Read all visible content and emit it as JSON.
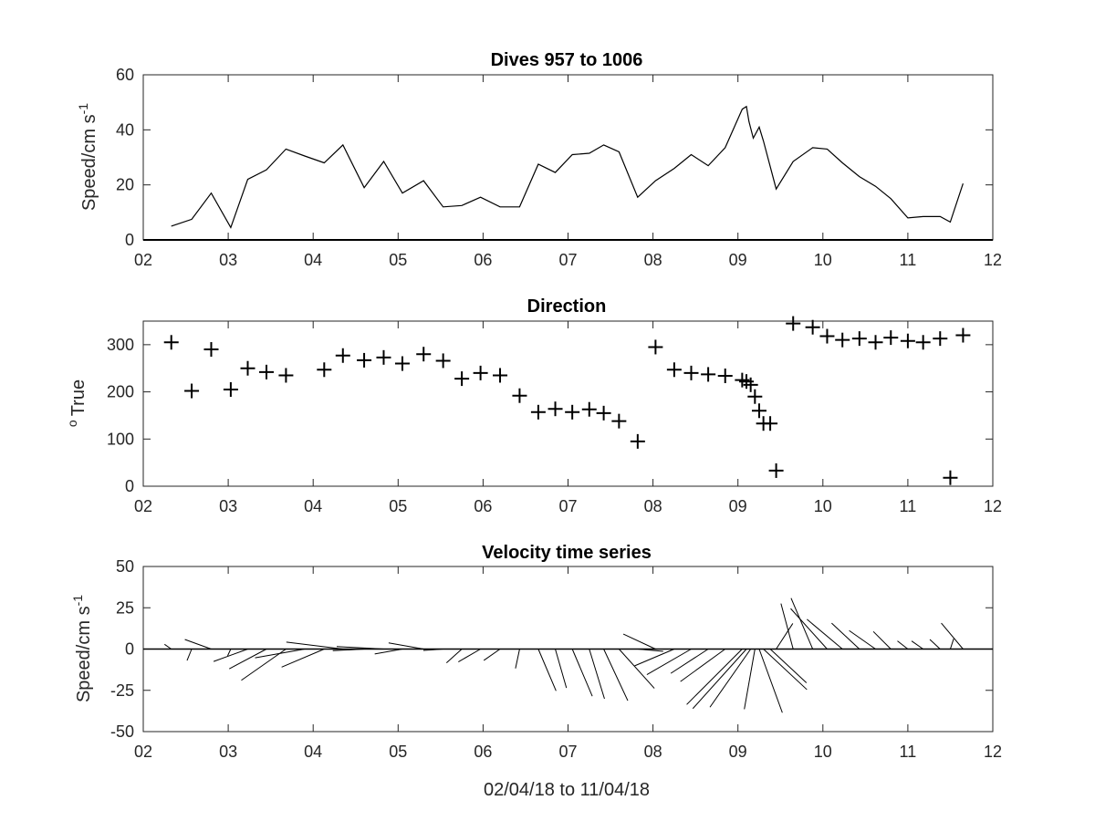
{
  "chart_data": [
    {
      "type": "line",
      "title": "Dives 957 to 1006",
      "ylabel": "Speed/cm s",
      "ylabel_superscript": "-1",
      "xlim": [
        2,
        12
      ],
      "ylim": [
        0,
        60
      ],
      "xticks": [
        2,
        3,
        4,
        5,
        6,
        7,
        8,
        9,
        10,
        11,
        12
      ],
      "xtick_labels": [
        "02",
        "03",
        "04",
        "05",
        "06",
        "07",
        "08",
        "09",
        "10",
        "11",
        "12"
      ],
      "yticks": [
        0,
        20,
        40,
        60
      ],
      "ytick_labels": [
        "0",
        "20",
        "40",
        "60"
      ],
      "series": [
        {
          "x": [
            2.33,
            2.57,
            2.8,
            3.03,
            3.23,
            3.45,
            3.68,
            3.9,
            4.13,
            4.35,
            4.6,
            4.83,
            5.05,
            5.3,
            5.53,
            5.75,
            5.97,
            6.2,
            6.43,
            6.65,
            6.85,
            7.05,
            7.25,
            7.42,
            7.6,
            7.82,
            8.03,
            8.25,
            8.45,
            8.65,
            8.85,
            9.05,
            9.1,
            9.13,
            9.18,
            9.25,
            9.3,
            9.45,
            9.65,
            9.88,
            10.05,
            10.23,
            10.43,
            10.62,
            10.8,
            11.0,
            11.18,
            11.38,
            11.5,
            11.65
          ],
          "y": [
            5,
            7.5,
            17,
            4.5,
            22,
            25.5,
            33,
            30.5,
            28,
            34.5,
            19,
            28.5,
            17,
            21.5,
            12,
            12.5,
            15.5,
            12,
            12,
            27.5,
            24.5,
            31,
            31.5,
            34.5,
            32,
            15.5,
            21.5,
            26,
            31,
            27,
            33.5,
            47.5,
            48.5,
            43,
            37,
            41,
            36,
            18.5,
            28.5,
            33.5,
            33,
            28,
            23,
            19.5,
            15,
            8,
            8.5,
            8.5,
            6.5,
            20.5
          ]
        }
      ]
    },
    {
      "type": "scatter",
      "title": "Direction",
      "ylabel": "True",
      "ylabel_superscript": "o",
      "xlim": [
        2,
        12
      ],
      "ylim": [
        0,
        350
      ],
      "xticks": [
        2,
        3,
        4,
        5,
        6,
        7,
        8,
        9,
        10,
        11,
        12
      ],
      "xtick_labels": [
        "02",
        "03",
        "04",
        "05",
        "06",
        "07",
        "08",
        "09",
        "10",
        "11",
        "12"
      ],
      "yticks": [
        0,
        100,
        200,
        300
      ],
      "ytick_labels": [
        "0",
        "100",
        "200",
        "300"
      ],
      "marker": "+",
      "series": [
        {
          "x": [
            2.33,
            2.57,
            2.8,
            3.03,
            3.23,
            3.45,
            3.68,
            4.13,
            4.35,
            4.6,
            4.83,
            5.05,
            5.3,
            5.53,
            5.75,
            5.97,
            6.2,
            6.43,
            6.65,
            6.85,
            7.05,
            7.25,
            7.42,
            7.6,
            7.82,
            8.03,
            8.25,
            8.45,
            8.65,
            8.85,
            9.05,
            9.1,
            9.15,
            9.2,
            9.25,
            9.3,
            9.38,
            9.45,
            9.65,
            9.88,
            10.05,
            10.23,
            10.43,
            10.62,
            10.8,
            11.0,
            11.18,
            11.38,
            11.5,
            11.65
          ],
          "y": [
            305,
            202,
            290,
            205,
            250,
            242,
            235,
            247,
            277,
            267,
            273,
            260,
            280,
            266,
            228,
            240,
            235,
            192,
            157,
            164,
            157,
            163,
            155,
            138,
            95,
            295,
            247,
            240,
            237,
            234,
            225,
            222,
            215,
            190,
            160,
            133,
            133,
            33,
            345,
            337,
            318,
            310,
            313,
            305,
            315,
            308,
            305,
            313,
            18,
            320
          ]
        }
      ]
    },
    {
      "type": "feather",
      "title": "Velocity time series",
      "ylabel": "Speed/cm s",
      "ylabel_superscript": "-1",
      "xlabel": "02/04/18 to 11/04/18",
      "xlim": [
        2,
        12
      ],
      "ylim": [
        -50,
        50
      ],
      "xticks": [
        2,
        3,
        4,
        5,
        6,
        7,
        8,
        9,
        10,
        11,
        12
      ],
      "xtick_labels": [
        "02",
        "03",
        "04",
        "05",
        "06",
        "07",
        "08",
        "09",
        "10",
        "11",
        "12"
      ],
      "yticks": [
        -50,
        -25,
        0,
        25,
        50
      ],
      "ytick_labels": [
        "-50",
        "-25",
        "0",
        "25",
        "50"
      ],
      "series": [
        {
          "x": [
            2.33,
            2.57,
            2.8,
            3.03,
            3.23,
            3.45,
            3.68,
            3.9,
            4.13,
            4.35,
            4.6,
            4.83,
            5.05,
            5.3,
            5.53,
            5.75,
            5.97,
            6.2,
            6.43,
            6.65,
            6.85,
            7.05,
            7.25,
            7.42,
            7.6,
            7.82,
            8.03,
            8.25,
            8.45,
            8.65,
            8.85,
            9.05,
            9.1,
            9.15,
            9.2,
            9.25,
            9.3,
            9.38,
            9.45,
            9.65,
            9.88,
            10.05,
            10.23,
            10.43,
            10.62,
            10.8,
            11.0,
            11.18,
            11.38,
            11.5,
            11.65
          ],
          "speed": [
            5,
            7.5,
            17,
            4.5,
            22,
            25.5,
            33,
            30.5,
            28,
            34.5,
            19,
            28.5,
            17,
            21.5,
            12,
            12.5,
            15.5,
            12,
            12,
            27.5,
            24.5,
            31,
            31.5,
            34.5,
            32,
            15.5,
            21.5,
            26,
            31,
            27,
            33.5,
            47.5,
            48.5,
            43,
            37,
            41,
            36,
            30,
            18.5,
            28.5,
            33.5,
            33,
            28,
            23,
            19.5,
            15,
            8,
            8.5,
            8.5,
            6.5,
            20.5
          ],
          "direction": [
            305,
            202,
            290,
            205,
            250,
            242,
            235,
            260,
            247,
            277,
            267,
            273,
            260,
            280,
            266,
            228,
            240,
            235,
            192,
            157,
            164,
            157,
            163,
            155,
            138,
            95,
            295,
            247,
            240,
            237,
            234,
            225,
            222,
            215,
            190,
            160,
            133,
            133,
            33,
            345,
            337,
            318,
            310,
            313,
            305,
            315,
            308,
            305,
            313,
            18,
            320
          ]
        }
      ]
    }
  ]
}
